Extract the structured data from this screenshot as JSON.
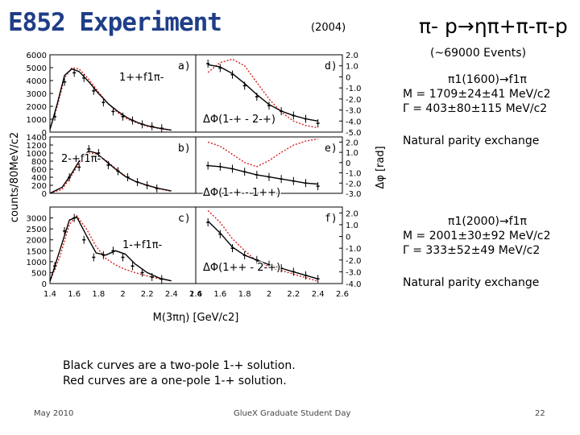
{
  "slide": {
    "title": "E852 Experiment",
    "year": "(2004)",
    "reaction": "π- p→ηπ+π-π-p",
    "events": "(~69000 Events)",
    "info1": {
      "line1": "π1(1600)→f1π",
      "line2": "M = 1709±24±41 MeV/c2",
      "line3": "Γ = 403±80±115 MeV/c2",
      "line4": "Natural parity exchange"
    },
    "info2": {
      "line1": "π1(2000)→f1π",
      "line2": "M = 2001±30±92 MeV/c2",
      "line3": "Γ = 333±52±49 MeV/c2",
      "line4": "Natural parity exchange"
    },
    "caption": {
      "line1": "Black curves are a two-pole 1-+ solution.",
      "line2": "Red curves are a one-pole 1-+ solution."
    },
    "footer": {
      "date": "May 2010",
      "event": "GlueX Graduate Student Day",
      "page": "22"
    }
  },
  "chart_data": [
    {
      "type": "scatter",
      "panel": "a)",
      "label": "1++f1π-",
      "ylabel": "counts/80MeV/c2",
      "ylim": [
        0,
        6000
      ],
      "yticks": [
        "0",
        "1000",
        "2000",
        "3000",
        "4000",
        "5000",
        "6000"
      ],
      "x": [
        1.44,
        1.52,
        1.6,
        1.68,
        1.76,
        1.84,
        1.92,
        2.0,
        2.08,
        2.16,
        2.24,
        2.32
      ],
      "y": [
        1200,
        3900,
        4600,
        4200,
        3200,
        2300,
        1600,
        1200,
        900,
        600,
        450,
        300
      ],
      "black_curve": [
        [
          1.4,
          200
        ],
        [
          1.46,
          2200
        ],
        [
          1.52,
          4400
        ],
        [
          1.58,
          4900
        ],
        [
          1.64,
          4700
        ],
        [
          1.72,
          3900
        ],
        [
          1.8,
          3000
        ],
        [
          1.88,
          2200
        ],
        [
          1.96,
          1600
        ],
        [
          2.04,
          1100
        ],
        [
          2.12,
          750
        ],
        [
          2.2,
          500
        ],
        [
          2.3,
          300
        ],
        [
          2.4,
          150
        ]
      ],
      "red_curve": [
        [
          1.4,
          200
        ],
        [
          1.46,
          2000
        ],
        [
          1.52,
          4200
        ],
        [
          1.58,
          5000
        ],
        [
          1.64,
          4900
        ],
        [
          1.72,
          4100
        ],
        [
          1.8,
          3100
        ],
        [
          1.88,
          2200
        ],
        [
          1.96,
          1500
        ],
        [
          2.04,
          1000
        ],
        [
          2.12,
          700
        ],
        [
          2.2,
          450
        ],
        [
          2.3,
          280
        ],
        [
          2.4,
          150
        ]
      ]
    },
    {
      "type": "scatter",
      "panel": "b)",
      "label": "2-+f1π-",
      "ylim": [
        0,
        1400
      ],
      "yticks": [
        "0",
        "200",
        "400",
        "600",
        "800",
        "1000",
        "1200",
        "1400"
      ],
      "x": [
        1.56,
        1.64,
        1.72,
        1.8,
        1.88,
        1.96,
        2.04,
        2.12,
        2.2,
        2.28
      ],
      "y": [
        400,
        650,
        1100,
        1000,
        700,
        550,
        400,
        280,
        200,
        120
      ],
      "black_curve": [
        [
          1.4,
          0
        ],
        [
          1.5,
          150
        ],
        [
          1.58,
          500
        ],
        [
          1.66,
          900
        ],
        [
          1.72,
          1050
        ],
        [
          1.78,
          1000
        ],
        [
          1.86,
          800
        ],
        [
          1.94,
          600
        ],
        [
          2.02,
          420
        ],
        [
          2.1,
          300
        ],
        [
          2.2,
          200
        ],
        [
          2.3,
          120
        ],
        [
          2.4,
          60
        ]
      ],
      "red_curve": [
        [
          1.4,
          0
        ],
        [
          1.5,
          100
        ],
        [
          1.58,
          450
        ],
        [
          1.66,
          850
        ],
        [
          1.72,
          1000
        ],
        [
          1.78,
          980
        ],
        [
          1.86,
          820
        ],
        [
          1.94,
          620
        ],
        [
          2.02,
          430
        ],
        [
          2.1,
          300
        ],
        [
          2.2,
          190
        ],
        [
          2.3,
          110
        ],
        [
          2.4,
          50
        ]
      ]
    },
    {
      "type": "scatter",
      "panel": "c)",
      "label": "1-+f1π-",
      "xlabel": "M(3πη) [GeV/c2]",
      "xlim": [
        1.4,
        2.6
      ],
      "xticks": [
        "1.4",
        "1.6",
        "1.8",
        "2",
        "2.2",
        "2.4",
        "2.6"
      ],
      "ylim": [
        0,
        3500
      ],
      "yticks": [
        "0",
        "500",
        "1000",
        "1500",
        "2000",
        "2500",
        "3000"
      ],
      "x": [
        1.44,
        1.52,
        1.6,
        1.68,
        1.76,
        1.84,
        1.92,
        2.0,
        2.08,
        2.16,
        2.24,
        2.32
      ],
      "y": [
        800,
        2400,
        3000,
        2000,
        1200,
        1300,
        1500,
        1200,
        800,
        500,
        300,
        200
      ],
      "black_curve": [
        [
          1.4,
          100
        ],
        [
          1.48,
          1500
        ],
        [
          1.56,
          2900
        ],
        [
          1.62,
          3050
        ],
        [
          1.7,
          2200
        ],
        [
          1.78,
          1400
        ],
        [
          1.86,
          1300
        ],
        [
          1.94,
          1500
        ],
        [
          2.02,
          1350
        ],
        [
          2.1,
          900
        ],
        [
          2.2,
          500
        ],
        [
          2.3,
          250
        ],
        [
          2.4,
          120
        ]
      ],
      "red_curve": [
        [
          1.4,
          100
        ],
        [
          1.48,
          1200
        ],
        [
          1.56,
          2700
        ],
        [
          1.62,
          3100
        ],
        [
          1.7,
          2500
        ],
        [
          1.78,
          1700
        ],
        [
          1.86,
          1150
        ],
        [
          1.94,
          850
        ],
        [
          2.02,
          650
        ],
        [
          2.1,
          500
        ],
        [
          2.2,
          350
        ],
        [
          2.3,
          220
        ],
        [
          2.4,
          120
        ]
      ]
    },
    {
      "type": "scatter",
      "panel": "d)",
      "label": "ΔΦ(1-+ - 2-+)",
      "ylim": [
        -5.0,
        2.0
      ],
      "yticks": [
        "-5.0",
        "-4.0",
        "-3.0",
        "-2.0",
        "-1.0",
        "0",
        "1.0",
        "2.0"
      ],
      "x": [
        1.5,
        1.6,
        1.7,
        1.8,
        1.9,
        2.0,
        2.1,
        2.2,
        2.3,
        2.4
      ],
      "y": [
        1.2,
        0.8,
        0.2,
        -0.8,
        -1.8,
        -2.6,
        -3.1,
        -3.5,
        -3.8,
        -4.2
      ],
      "black_curve": [
        [
          1.5,
          1.1
        ],
        [
          1.6,
          0.9
        ],
        [
          1.7,
          0.3
        ],
        [
          1.8,
          -0.6
        ],
        [
          1.9,
          -1.6
        ],
        [
          2.0,
          -2.5
        ],
        [
          2.1,
          -3.1
        ],
        [
          2.2,
          -3.5
        ],
        [
          2.3,
          -3.8
        ],
        [
          2.4,
          -4.0
        ]
      ],
      "red_curve": [
        [
          1.5,
          0.4
        ],
        [
          1.6,
          1.3
        ],
        [
          1.7,
          1.6
        ],
        [
          1.8,
          1.0
        ],
        [
          1.9,
          -0.5
        ],
        [
          2.0,
          -2.0
        ],
        [
          2.1,
          -3.2
        ],
        [
          2.2,
          -4.0
        ],
        [
          2.3,
          -4.4
        ],
        [
          2.4,
          -4.6
        ]
      ]
    },
    {
      "type": "scatter",
      "panel": "e)",
      "label": "ΔΦ(1-+ - 1++)",
      "ylim": [
        -3.0,
        2.5
      ],
      "yticks": [
        "-3.0",
        "-2.0",
        "-1.0",
        "0",
        "1.0",
        "2.0"
      ],
      "x": [
        1.5,
        1.6,
        1.7,
        1.8,
        1.9,
        2.0,
        2.1,
        2.2,
        2.3,
        2.4
      ],
      "y": [
        -0.3,
        -0.4,
        -0.6,
        -0.9,
        -1.2,
        -1.4,
        -1.6,
        -1.8,
        -2.0,
        -2.3
      ],
      "black_curve": [
        [
          1.5,
          -0.3
        ],
        [
          1.6,
          -0.4
        ],
        [
          1.7,
          -0.6
        ],
        [
          1.8,
          -0.9
        ],
        [
          1.9,
          -1.2
        ],
        [
          2.0,
          -1.4
        ],
        [
          2.1,
          -1.6
        ],
        [
          2.2,
          -1.8
        ],
        [
          2.3,
          -2.0
        ],
        [
          2.4,
          -2.1
        ]
      ],
      "red_curve": [
        [
          1.5,
          2.0
        ],
        [
          1.6,
          1.6
        ],
        [
          1.7,
          0.8
        ],
        [
          1.8,
          0.0
        ],
        [
          1.9,
          -0.4
        ],
        [
          2.0,
          0.2
        ],
        [
          2.1,
          1.0
        ],
        [
          2.2,
          1.7
        ],
        [
          2.3,
          2.1
        ],
        [
          2.4,
          2.3
        ]
      ]
    },
    {
      "type": "scatter",
      "panel": "f)",
      "label": "ΔΦ(1++ - 2-+)",
      "ylim": [
        -4.0,
        2.5
      ],
      "yticks": [
        "-4.0",
        "-3.0",
        "-2.0",
        "-1.0",
        "0",
        "1.0",
        "2.0"
      ],
      "x": [
        1.5,
        1.6,
        1.7,
        1.8,
        1.9,
        2.0,
        2.1,
        2.2,
        2.3,
        2.4
      ],
      "y": [
        1.2,
        0.2,
        -1.0,
        -1.6,
        -2.0,
        -2.4,
        -2.7,
        -3.0,
        -3.3,
        -3.6
      ],
      "black_curve": [
        [
          1.5,
          1.3
        ],
        [
          1.6,
          0.3
        ],
        [
          1.7,
          -0.9
        ],
        [
          1.8,
          -1.6
        ],
        [
          1.9,
          -2.0
        ],
        [
          2.0,
          -2.4
        ],
        [
          2.1,
          -2.7
        ],
        [
          2.2,
          -3.0
        ],
        [
          2.3,
          -3.3
        ],
        [
          2.4,
          -3.6
        ]
      ],
      "red_curve": [
        [
          1.5,
          2.2
        ],
        [
          1.6,
          1.2
        ],
        [
          1.7,
          -0.2
        ],
        [
          1.8,
          -1.2
        ],
        [
          1.9,
          -2.1
        ],
        [
          2.0,
          -2.6
        ],
        [
          2.1,
          -2.9
        ],
        [
          2.2,
          -3.2
        ],
        [
          2.3,
          -3.5
        ],
        [
          2.4,
          -3.8
        ]
      ]
    }
  ],
  "axis_labels": {
    "phase": "Δφ [rad]",
    "counts": "counts/80MeV/c2",
    "mass": "M(3πη) [GeV/c2]"
  }
}
